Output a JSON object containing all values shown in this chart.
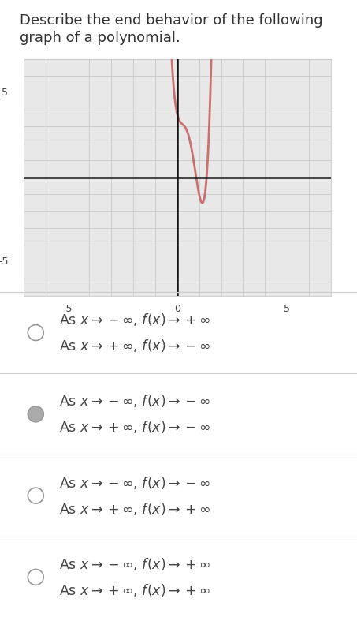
{
  "title_line1": "Describe the end behavior of the following",
  "title_line2": "graph of a polynomial.",
  "title_fontsize": 13,
  "title_color": "#333333",
  "background_color": "#ffffff",
  "graph_bg_color": "#e8e8e8",
  "curve_color": "#c97070",
  "curve_linewidth": 2.0,
  "axis_color": "#111111",
  "grid_color": "#c8c8c8",
  "xlim": [
    -7,
    7
  ],
  "ylim": [
    -7,
    7
  ],
  "xtick_major": [
    -5,
    0,
    5
  ],
  "ytick_major": [
    -5,
    5
  ],
  "separator_color": "#cccccc",
  "options": [
    {
      "line1": "As $x \\rightarrow -\\infty$, $f(x) \\rightarrow +\\infty$",
      "line2": "As $x \\rightarrow +\\infty$, $f(x) \\rightarrow -\\infty$",
      "selected": false
    },
    {
      "line1": "As $x \\rightarrow -\\infty$, $f(x) \\rightarrow -\\infty$",
      "line2": "As $x \\rightarrow +\\infty$, $f(x) \\rightarrow -\\infty$",
      "selected": true
    },
    {
      "line1": "As $x \\rightarrow -\\infty$, $f(x) \\rightarrow -\\infty$",
      "line2": "As $x \\rightarrow +\\infty$, $f(x) \\rightarrow +\\infty$",
      "selected": false
    },
    {
      "line1": "As $x \\rightarrow -\\infty$, $f(x) \\rightarrow +\\infty$",
      "line2": "As $x \\rightarrow +\\infty$, $f(x) \\rightarrow +\\infty$",
      "selected": false
    }
  ],
  "radio_unselected_facecolor": "#ffffff",
  "radio_selected_facecolor": "#aaaaaa",
  "radio_edge_color": "#999999",
  "option_text_color": "#444444",
  "option_fontsize": 12.5
}
